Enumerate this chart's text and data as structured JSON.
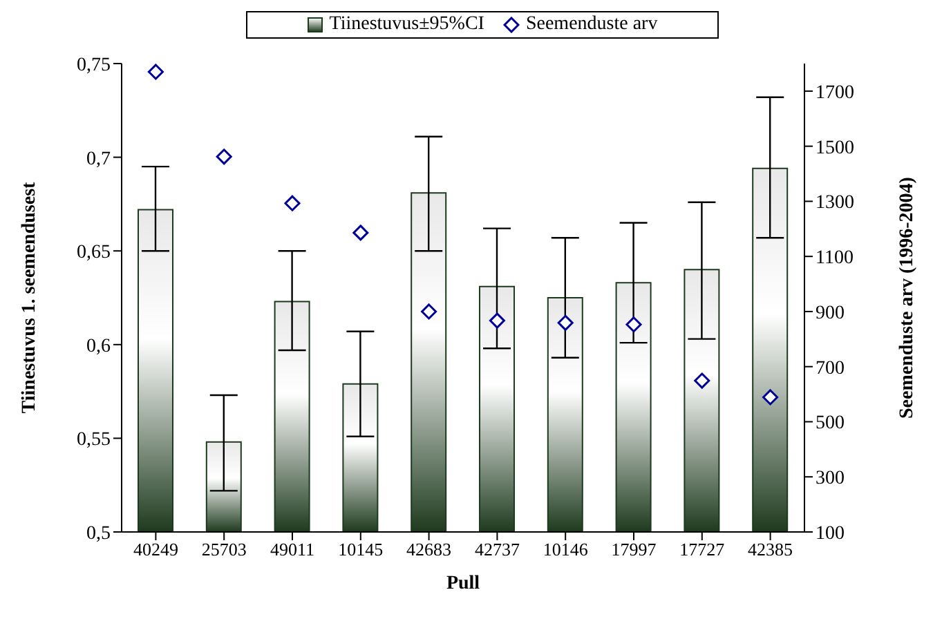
{
  "chart_data": {
    "type": "bar",
    "xlabel": "Pull",
    "ylabel": "Tiinestuvus 1. seemendusest",
    "y2label": "Seemenduste arv (1996-2004)",
    "categories": [
      "40249",
      "25703",
      "49011",
      "10145",
      "42683",
      "42737",
      "10146",
      "17997",
      "17727",
      "42385"
    ],
    "series": [
      {
        "name": "Tiinestuvus±95%CI",
        "color": "#1e3a1e",
        "values": [
          0.672,
          0.548,
          0.623,
          0.579,
          0.681,
          0.631,
          0.625,
          0.633,
          0.64,
          0.694
        ],
        "errors": [
          [
            0.65,
            0.695
          ],
          [
            0.522,
            0.573
          ],
          [
            0.597,
            0.65
          ],
          [
            0.551,
            0.607
          ],
          [
            0.65,
            0.711
          ],
          [
            0.598,
            0.662
          ],
          [
            0.593,
            0.657
          ],
          [
            0.601,
            0.665
          ],
          [
            0.603,
            0.676
          ],
          [
            0.657,
            0.732
          ]
        ]
      },
      {
        "name": "Seemenduste arv",
        "type": "scatter",
        "axis": "y2",
        "color": "#000099",
        "marker": "diamond",
        "values": [
          1770,
          1462,
          1293,
          1186,
          900,
          867,
          859,
          853,
          649,
          589
        ]
      }
    ],
    "ylim": [
      0.5,
      0.75
    ],
    "yticks": [
      {
        "value": 0.5,
        "label": "0,5"
      },
      {
        "value": 0.55,
        "label": "0,55"
      },
      {
        "value": 0.6,
        "label": "0,6"
      },
      {
        "value": 0.65,
        "label": "0,65"
      },
      {
        "value": 0.7,
        "label": "0,7"
      },
      {
        "value": 0.75,
        "label": "0,75"
      }
    ],
    "y2lim": [
      100,
      1800
    ],
    "y2ticks": [
      100,
      300,
      500,
      700,
      900,
      1100,
      1300,
      1500,
      1700
    ],
    "legend": "top",
    "grid": false
  }
}
